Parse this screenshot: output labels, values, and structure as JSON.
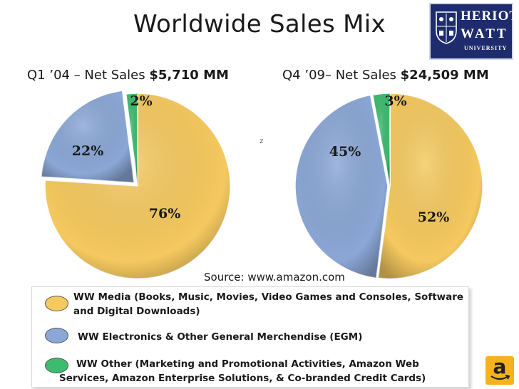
{
  "title": "Worldwide Sales Mix",
  "logo": {
    "line1": "HERIOT",
    "line2": "WATT",
    "line3": "UNIVERSITY"
  },
  "stray_mark": "z",
  "source": "Source: www.amazon.com",
  "colors": {
    "media": "#f5c95f",
    "electronics": "#8ba7d6",
    "other": "#3dbb6f"
  },
  "icons": {
    "amazon": "amazon-logo-icon"
  },
  "chart_data": [
    {
      "type": "pie",
      "title_prefix": "Q1 ’04 – Net Sales",
      "title_value": "$5,710 MM",
      "slices": [
        {
          "name": "WW Media",
          "value": 76,
          "label": "76%",
          "color": "#f5c95f"
        },
        {
          "name": "WW Electronics & Other General Merchendise (EGM)",
          "value": 22,
          "label": "22%",
          "color": "#8ba7d6"
        },
        {
          "name": "WW Other",
          "value": 2,
          "label": "2%",
          "color": "#3dbb6f"
        }
      ]
    },
    {
      "type": "pie",
      "title_prefix": "Q4 ’09– Net Sales",
      "title_value": "$24,509 MM",
      "slices": [
        {
          "name": "WW Media",
          "value": 52,
          "label": "52%",
          "color": "#f5c95f"
        },
        {
          "name": "WW Electronics & Other General Merchendise (EGM)",
          "value": 45,
          "label": "45%",
          "color": "#8ba7d6"
        },
        {
          "name": "WW Other",
          "value": 3,
          "label": "3%",
          "color": "#3dbb6f"
        }
      ]
    }
  ],
  "legend": [
    {
      "line1": "WW Media (Books, Music, Movies, Video Games and Consoles, Software",
      "line2": "and Digital Downloads)",
      "color": "#f5c95f"
    },
    {
      "line1": "WW Electronics & Other General  Merchendise (EGM)",
      "line2": "",
      "color": "#8ba7d6"
    },
    {
      "line1": "WW Other (Marketing and Promotional Activities, Amazon Web",
      "line2": "Services,      Amazon Enterprise Solutions, & Co-branded Credit Cards)",
      "color": "#3dbb6f"
    }
  ]
}
